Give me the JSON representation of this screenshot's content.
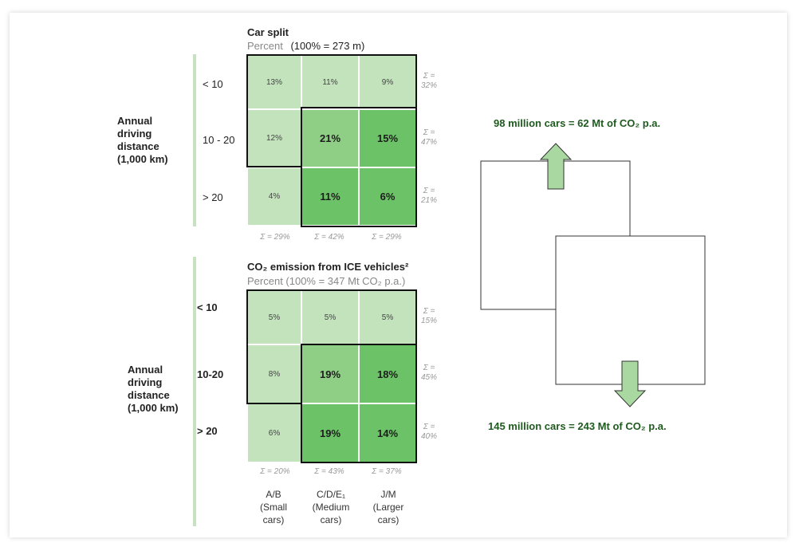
{
  "chart_data": [
    {
      "type": "heatmap",
      "title": "Car split",
      "subtitle_gray": "Percent",
      "subtitle_total": "(100% = 273 m)",
      "ylabel": "Annual driving distance (1,000 km)",
      "rows": [
        "< 10",
        "10 - 20",
        "> 20"
      ],
      "values": [
        [
          13,
          11,
          9
        ],
        [
          12,
          21,
          15
        ],
        [
          4,
          11,
          6
        ]
      ],
      "value_labels": [
        [
          "13%",
          "11%",
          "9%"
        ],
        [
          "12%",
          "21%",
          "15%"
        ],
        [
          "4%",
          "11%",
          "6%"
        ]
      ],
      "row_sums": [
        "Σ = 32%",
        "Σ = 47%",
        "Σ = 21%"
      ],
      "col_sums": [
        "Σ = 29%",
        "Σ = 42%",
        "Σ = 29%"
      ]
    },
    {
      "type": "heatmap",
      "title": "CO₂ emission from ICE vehicles²",
      "subtitle": "Percent (100% = 347 Mt CO₂ p.a.)",
      "ylabel": "Annual driving distance (1,000 km)",
      "rows": [
        "< 10",
        "10-20",
        "> 20"
      ],
      "values": [
        [
          5,
          5,
          5
        ],
        [
          8,
          19,
          18
        ],
        [
          6,
          19,
          14
        ]
      ],
      "value_labels": [
        [
          "5%",
          "5%",
          "5%"
        ],
        [
          "8%",
          "19%",
          "18%"
        ],
        [
          "6%",
          "19%",
          "14%"
        ]
      ],
      "row_sums": [
        "Σ = 15%",
        "Σ = 45%",
        "Σ = 40%"
      ],
      "col_sums": [
        "Σ = 20%",
        "Σ = 43%",
        "Σ = 37%"
      ],
      "categories": [
        {
          "line1": "A/B",
          "line2": "(Small",
          "line3": "cars)"
        },
        {
          "line1": "C/D/E₁",
          "line2": "(Medium",
          "line3": "cars)"
        },
        {
          "line1": "J/M",
          "line2": "(Larger",
          "line3": "cars)"
        }
      ]
    }
  ],
  "callouts": {
    "up": "98 million cars = 62 Mt of CO₂ p.a.",
    "down": "145 million cars = 243 Mt of CO₂ p.a."
  },
  "colors": {
    "light": "#c3e3bd",
    "mid": "#8fce85",
    "dark": "#6cc266",
    "arrow_fill": "#a9d8a0",
    "callout_text": "#1f5a1f"
  }
}
